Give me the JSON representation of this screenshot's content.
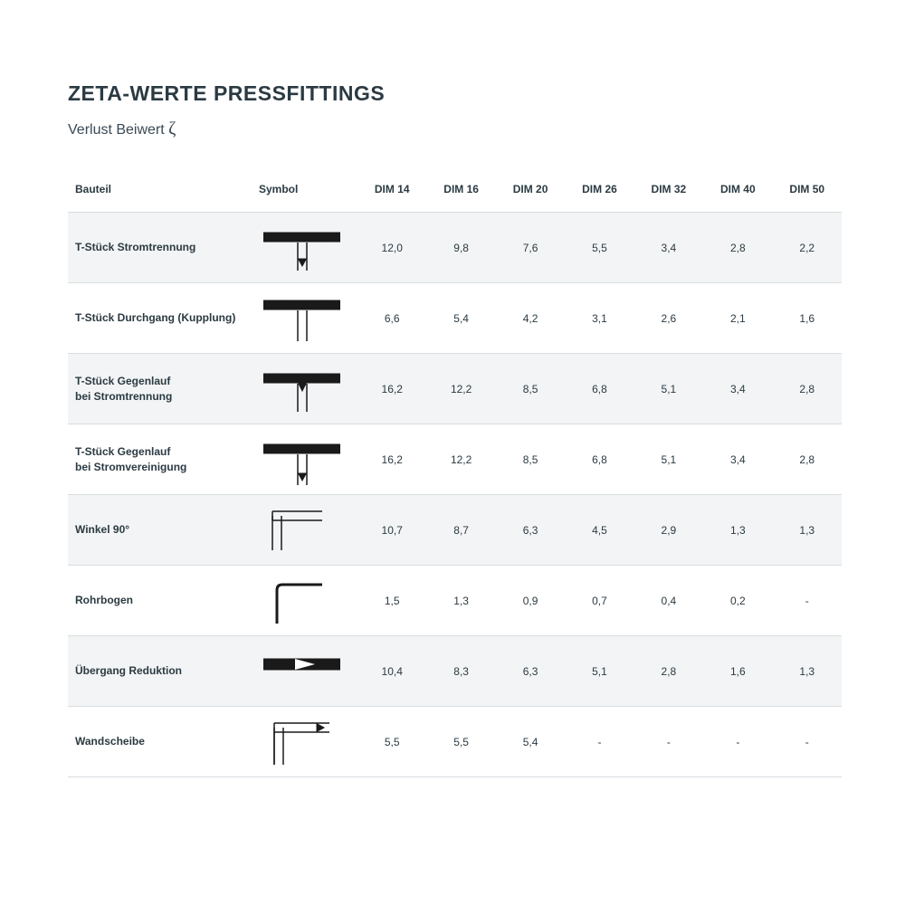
{
  "title": "ZETA-WERTE PRESSFITTINGS",
  "subtitle_prefix": "Verlust Beiwert ",
  "subtitle_symbol": "ζ",
  "colors": {
    "text": "#2b3a42",
    "background": "#ffffff",
    "row_shade": "#f2f4f5",
    "row_border": "#d8dde0",
    "symbol_stroke": "#1a1a1a"
  },
  "columns": [
    "Bauteil",
    "Symbol",
    "DIM 14",
    "DIM 16",
    "DIM 20",
    "DIM 26",
    "DIM 32",
    "DIM 40",
    "DIM 50"
  ],
  "rows": [
    {
      "label": "T-Stück Stromtrennung",
      "icon": "t-sep",
      "vals": [
        "12,0",
        "9,8",
        "7,6",
        "5,5",
        "3,4",
        "2,8",
        "2,2"
      ]
    },
    {
      "label": "T-Stück Durchgang (Kupplung)",
      "icon": "t-through",
      "vals": [
        "6,6",
        "5,4",
        "4,2",
        "3,1",
        "2,6",
        "2,1",
        "1,6"
      ]
    },
    {
      "label": "T-Stück Gegenlauf\nbei Stromtrennung",
      "icon": "t-counter-sep",
      "vals": [
        "16,2",
        "12,2",
        "8,5",
        "6,8",
        "5,1",
        "3,4",
        "2,8"
      ]
    },
    {
      "label": "T-Stück Gegenlauf\nbei Stromvereinigung",
      "icon": "t-counter-join",
      "vals": [
        "16,2",
        "12,2",
        "8,5",
        "6,8",
        "5,1",
        "3,4",
        "2,8"
      ]
    },
    {
      "label": "Winkel 90°",
      "icon": "elbow-thick",
      "vals": [
        "10,7",
        "8,7",
        "6,3",
        "4,5",
        "2,9",
        "1,3",
        "1,3"
      ]
    },
    {
      "label": "Rohrbogen",
      "icon": "elbow-thin",
      "vals": [
        "1,5",
        "1,3",
        "0,9",
        "0,7",
        "0,4",
        "0,2",
        "-"
      ]
    },
    {
      "label": "Übergang Reduktion",
      "icon": "reduction",
      "vals": [
        "10,4",
        "8,3",
        "6,3",
        "5,1",
        "2,8",
        "1,6",
        "1,3"
      ]
    },
    {
      "label": "Wandscheibe",
      "icon": "wallplate",
      "vals": [
        "5,5",
        "5,5",
        "5,4",
        "-",
        "-",
        "-",
        "-"
      ]
    }
  ]
}
